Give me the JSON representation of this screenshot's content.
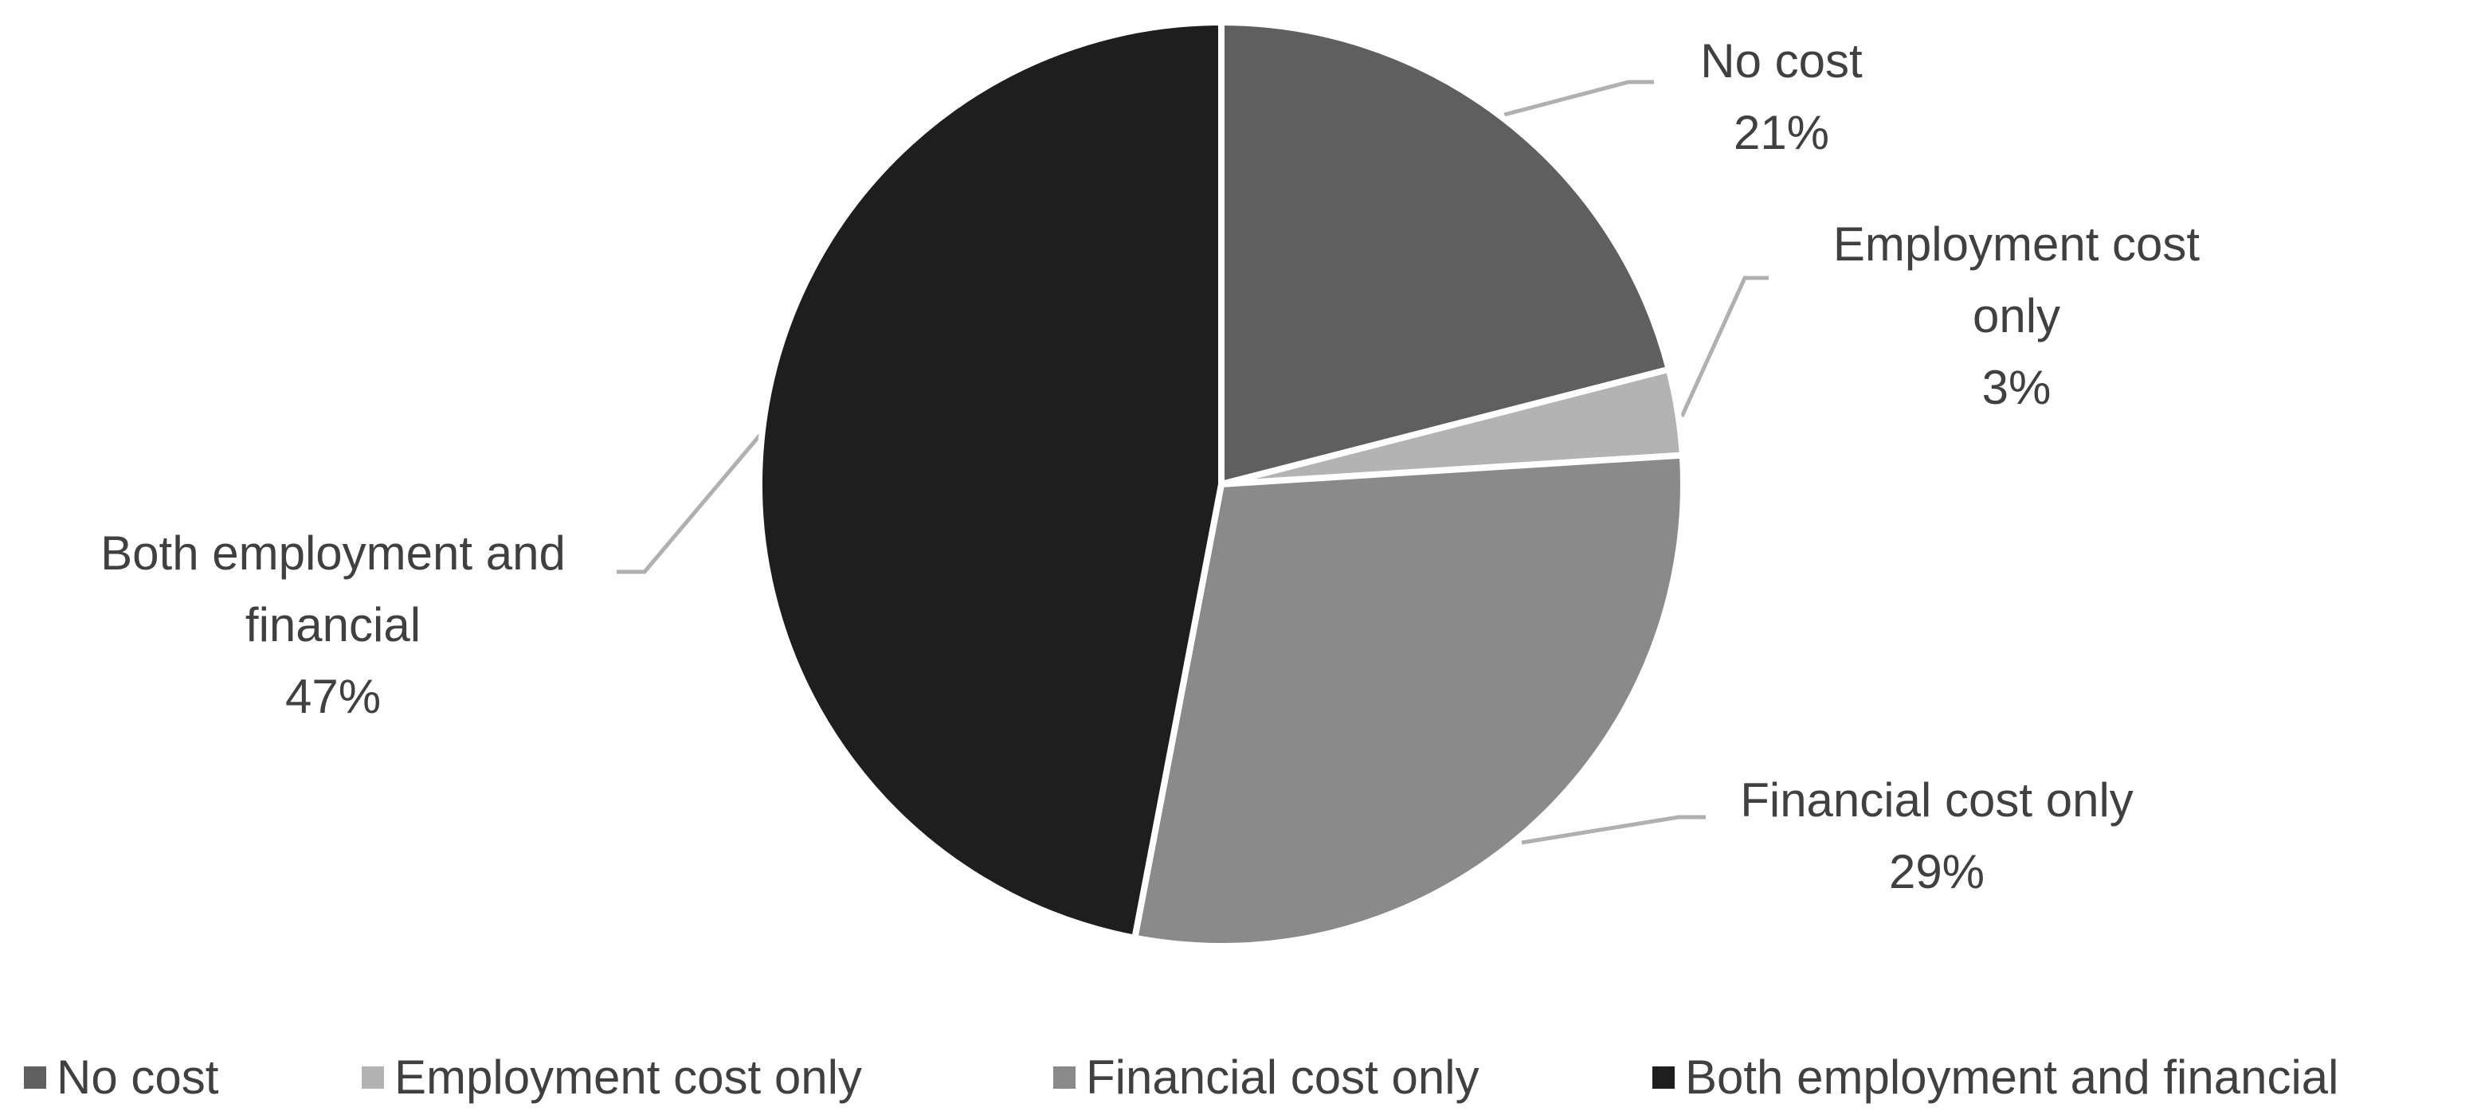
{
  "chart_data": {
    "type": "pie",
    "categories": [
      "No cost",
      "Employment cost only",
      "Financial cost only",
      "Both employment and financial"
    ],
    "values": [
      21,
      3,
      29,
      47
    ],
    "value_labels": [
      "21%",
      "3%",
      "29%",
      "47%"
    ],
    "colors": [
      "#5f5f5f",
      "#b3b3b3",
      "#8a8a8a",
      "#1e1e1e"
    ],
    "legend": "bottom"
  }
}
